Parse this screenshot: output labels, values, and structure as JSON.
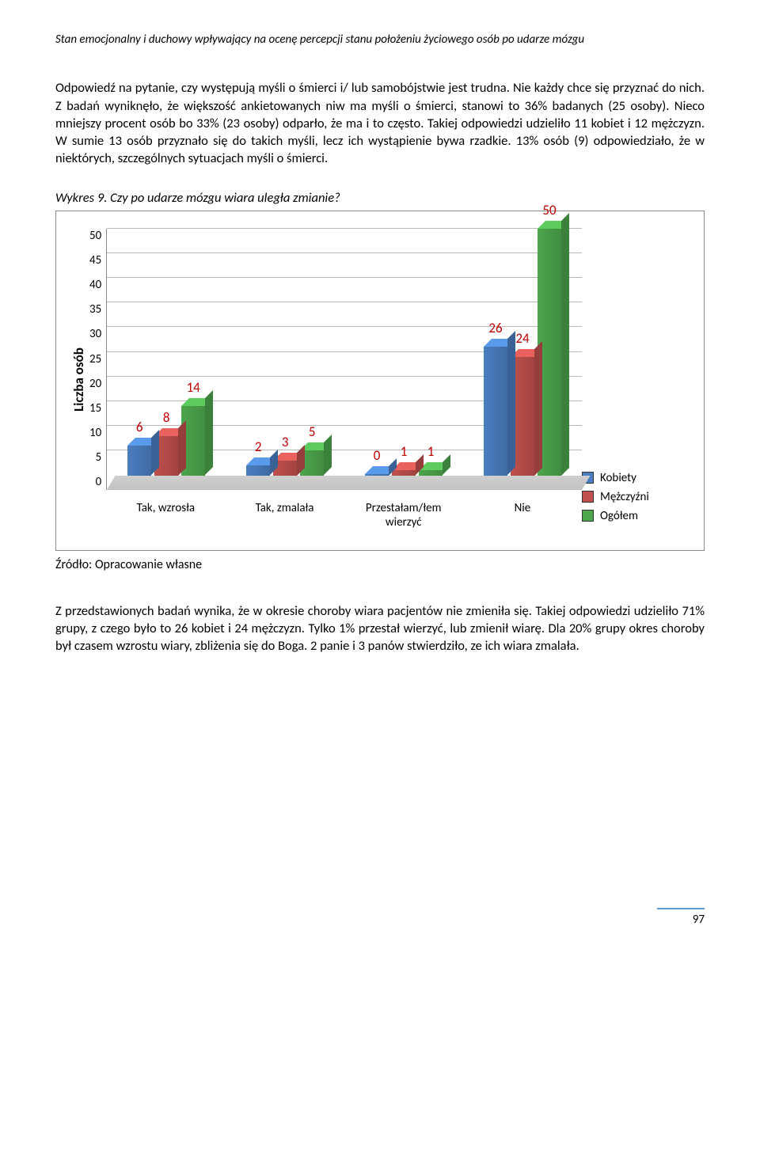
{
  "header": {
    "running_title": "Stan emocjonalny i duchowy wpływający na ocenę percepcji stanu położeniu życiowego osób po udarze mózgu"
  },
  "paragraphs": {
    "p1": "Odpowiedź na pytanie, czy występują myśli o śmierci i/ lub samobójstwie jest trudna. Nie każdy chce się przyznać do nich. Z badań wyniknęło, że większość ankietowanych niw ma myśli o śmierci, stanowi to 36% badanych (25 osoby). Nieco mniejszy procent osób bo 33% (23 osoby) odparło, że ma i to często. Takiej odpowiedzi udzieliło 11 kobiet i 12 mężczyzn. W sumie 13 osób przyznało się do takich myśli, lecz ich wystąpienie bywa rzadkie. 13% osób (9) odpowiedziało, że w niektórych, szczególnych sytuacjach myśli o śmierci.",
    "p2": "Z przedstawionych badań wynika, że w okresie choroby wiara pacjentów nie zmieniła się. Takiej odpowiedzi udzieliło 71% grupy, z czego było to 26 kobiet i 24 mężczyzn. Tylko 1% przestał wierzyć, lub zmienił wiarę. Dla 20% grupy okres choroby był czasem wzrostu wiary, zbliżenia się do Boga. 2 panie i 3 panów stwierdziło, ze ich wiara zmalała."
  },
  "figure": {
    "caption": "Wykres 9. Czy po udarze mózgu wiara uległa zmianie?",
    "source": "Źródło: Opracowanie własne"
  },
  "chart": {
    "type": "bar",
    "ylabel": "Liczba osób",
    "ymax": 50,
    "yticks": [
      50,
      45,
      40,
      35,
      30,
      25,
      20,
      15,
      10,
      5,
      0
    ],
    "categories": [
      "Tak, wzrosła",
      "Tak, zmalała",
      "Przestałam/łem wierzyć",
      "Nie"
    ],
    "series": [
      {
        "name": "Kobiety",
        "color": "#4a7ec0",
        "values": [
          6,
          2,
          0,
          26
        ]
      },
      {
        "name": "Mężczyźni",
        "color": "#c0504d",
        "values": [
          8,
          3,
          1,
          24
        ]
      },
      {
        "name": "Ogółem",
        "color": "#4ca64c",
        "values": [
          14,
          5,
          1,
          50
        ]
      }
    ],
    "grid_color": "#b8b8b8",
    "floor_color": "#c6c6c6",
    "label_color": "#c00000",
    "background_color": "#ffffff"
  },
  "page": {
    "number": "97"
  }
}
